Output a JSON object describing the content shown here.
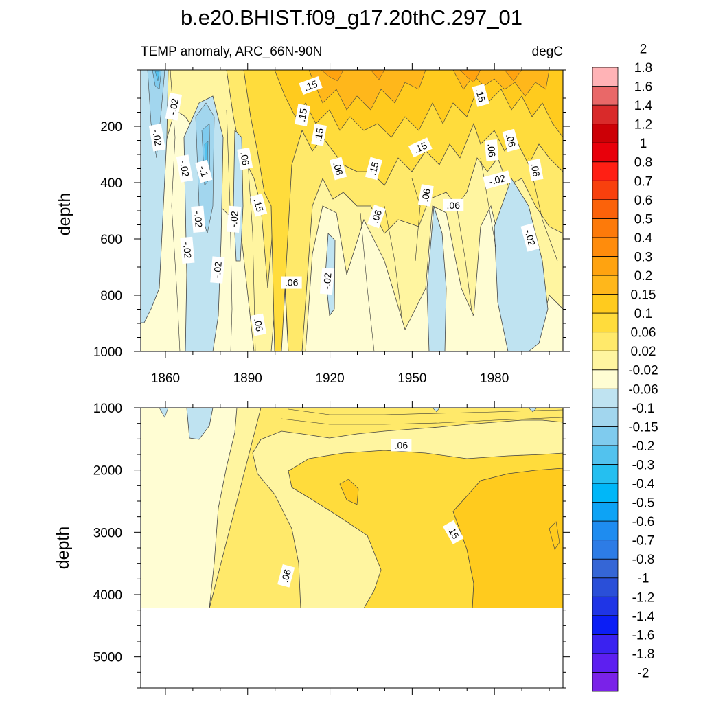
{
  "chart_data": {
    "type": "heatmap",
    "title": "b.e20.BHIST.f09_g17.20thC.297_01",
    "subtitle_left": "TEMP anomaly, ARC_66N-90N",
    "subtitle_right": "degC",
    "ylabel": "depth",
    "x_ticks": [
      "1860",
      "1890",
      "1920",
      "1950",
      "1980"
    ],
    "x_tick_values": [
      1860,
      1890,
      1920,
      1950,
      1980
    ],
    "x_range": [
      1851,
      2005
    ],
    "top_panel": {
      "ylim": [
        0,
        1000
      ],
      "y_ticks": [
        "200",
        "400",
        "600",
        "800",
        "1000"
      ],
      "y_tick_values": [
        200,
        400,
        600,
        800,
        1000
      ]
    },
    "bottom_panel": {
      "ylim": [
        1000,
        5500
      ],
      "data_bottom": 4100,
      "y_ticks": [
        "1000",
        "2000",
        "3000",
        "4000",
        "5000"
      ],
      "y_tick_values": [
        1000,
        2000,
        3000,
        4000,
        5000
      ]
    },
    "colorbar": {
      "colors": [
        "#7a22e8",
        "#5d1ff0",
        "#3a22f0",
        "#0b1ef5",
        "#1f35e6",
        "#2a4fd8",
        "#3566d6",
        "#2d7ce6",
        "#1e8cf0",
        "#0da3f5",
        "#00b7f8",
        "#25bff0",
        "#52c2ee",
        "#7fcbee",
        "#a2d6ee",
        "#bfe3f1",
        "#fffdd3",
        "#fff5a0",
        "#ffe96a",
        "#ffdc3c",
        "#ffcb1e",
        "#ffb71b",
        "#ffa310",
        "#ff8c0c",
        "#fd7a0a",
        "#fb620a",
        "#f8400d",
        "#ff1f14",
        "#e8000b",
        "#cc0006",
        "#d92a2a",
        "#e96868",
        "#ffb3b6"
      ],
      "labels": [
        "-2",
        "-1.8",
        "-1.6",
        "-1.4",
        "-1.2",
        "-1",
        "-0.8",
        "-0.7",
        "-0.6",
        "-0.5",
        "-0.4",
        "-0.3",
        "-0.2",
        "-0.15",
        "-0.1",
        "-0.06",
        "-0.02",
        "0.02",
        "0.06",
        "0.1",
        "0.15",
        "0.2",
        "0.3",
        "0.4",
        "0.5",
        "0.6",
        "0.7",
        "0.8",
        "1",
        "1.2",
        "1.4",
        "1.6",
        "1.8",
        "2"
      ]
    },
    "contour_labels": {
      "top": [
        {
          "text": ".15",
          "year": 1913,
          "depth": 55,
          "angle": -20
        },
        {
          "text": "-.02",
          "year": 1863,
          "depth": 130,
          "angle": -80
        },
        {
          "text": ".15",
          "year": 1910,
          "depth": 160,
          "angle": -80
        },
        {
          "text": ".15",
          "year": 1975,
          "depth": 90,
          "angle": 75
        },
        {
          "text": "-.02",
          "year": 1857,
          "depth": 240,
          "angle": 80
        },
        {
          "text": ".15",
          "year": 1916,
          "depth": 230,
          "angle": -80
        },
        {
          "text": ".15",
          "year": 1953,
          "depth": 275,
          "angle": -25
        },
        {
          "text": ".06",
          "year": 1979,
          "depth": 285,
          "angle": 85
        },
        {
          "text": ".06",
          "year": 1986,
          "depth": 250,
          "angle": 75
        },
        {
          "text": ".06",
          "year": 1889,
          "depth": 315,
          "angle": 80
        },
        {
          "text": "-.02",
          "year": 1867,
          "depth": 350,
          "angle": 80
        },
        {
          "text": "-.1",
          "year": 1874,
          "depth": 360,
          "angle": 75
        },
        {
          "text": ".06",
          "year": 1923,
          "depth": 350,
          "angle": 75
        },
        {
          "text": ".15",
          "year": 1936,
          "depth": 350,
          "angle": -75
        },
        {
          "text": "-.02",
          "year": 1981,
          "depth": 390,
          "angle": -15
        },
        {
          "text": ".06",
          "year": 1995,
          "depth": 355,
          "angle": 80
        },
        {
          "text": ".06",
          "year": 1955,
          "depth": 445,
          "angle": -80
        },
        {
          "text": ".15",
          "year": 1894,
          "depth": 480,
          "angle": 75
        },
        {
          "text": ".06",
          "year": 1965,
          "depth": 480,
          "angle": 0
        },
        {
          "text": "-.02",
          "year": 1872,
          "depth": 530,
          "angle": 85
        },
        {
          "text": "-.02",
          "year": 1885,
          "depth": 530,
          "angle": -85
        },
        {
          "text": ".06",
          "year": 1937,
          "depth": 520,
          "angle": -70
        },
        {
          "text": "-.02",
          "year": 1993,
          "depth": 595,
          "angle": 75
        },
        {
          "text": "-.02",
          "year": 1868,
          "depth": 640,
          "angle": 85
        },
        {
          "text": "-.02",
          "year": 1879,
          "depth": 710,
          "angle": -85
        },
        {
          "text": ".06",
          "year": 1906,
          "depth": 755,
          "angle": 0
        },
        {
          "text": "-.02",
          "year": 1919,
          "depth": 750,
          "angle": -85
        },
        {
          "text": ".06",
          "year": 1894,
          "depth": 905,
          "angle": 80
        }
      ],
      "bottom": [
        {
          "text": ".06",
          "year": 1946,
          "depth": 1600,
          "angle": 0
        },
        {
          "text": ".15",
          "year": 1965,
          "depth": 3000,
          "angle": 60
        },
        {
          "text": ".06",
          "year": 1904,
          "depth": 3700,
          "angle": -75
        }
      ]
    }
  }
}
